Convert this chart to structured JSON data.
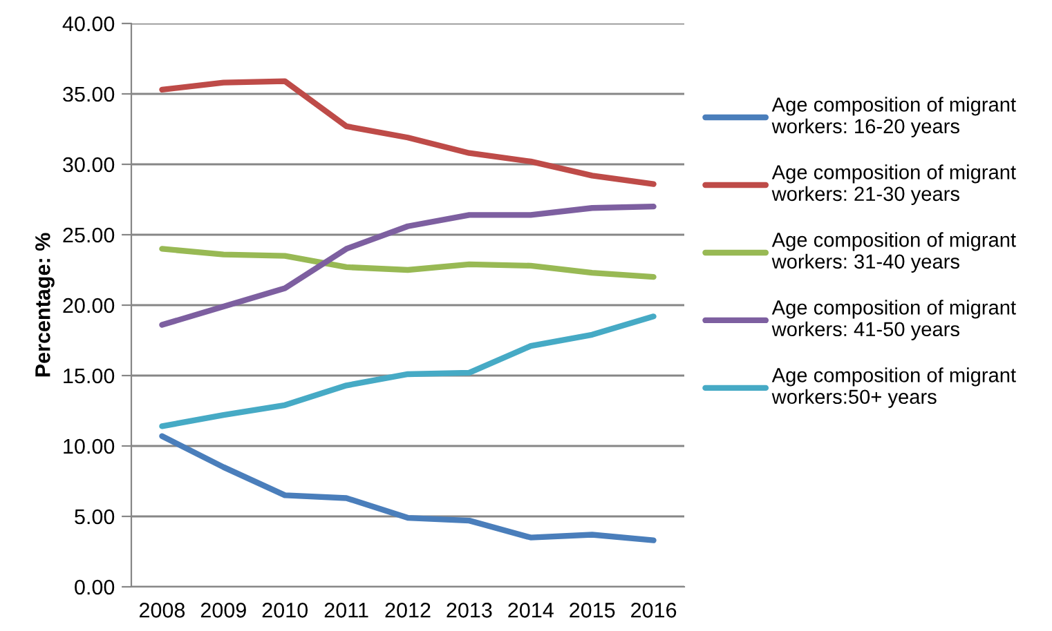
{
  "chart_data": {
    "type": "line",
    "ylabel": "Percentage: %",
    "categories": [
      "2008",
      "2009",
      "2010",
      "2011",
      "2012",
      "2013",
      "2014",
      "2015",
      "2016"
    ],
    "series": [
      {
        "name": "Age composition of migrant\nworkers: 16-20 years",
        "color": "#4a7ebb",
        "values": [
          10.7,
          8.5,
          6.5,
          6.3,
          4.9,
          4.7,
          3.5,
          3.7,
          3.3
        ]
      },
      {
        "name": "Age composition of migrant\nworkers: 21-30 years",
        "color": "#be4b48",
        "values": [
          35.3,
          35.8,
          35.9,
          32.7,
          31.9,
          30.8,
          30.2,
          29.2,
          28.6
        ]
      },
      {
        "name": "Age composition of migrant\nworkers: 31-40 years",
        "color": "#98b954",
        "values": [
          24.0,
          23.6,
          23.5,
          22.7,
          22.5,
          22.9,
          22.8,
          22.3,
          22.0
        ]
      },
      {
        "name": "Age composition of migrant\nworkers: 41-50 years",
        "color": "#7d5fa0",
        "values": [
          18.6,
          19.9,
          21.2,
          24.0,
          25.6,
          26.4,
          26.4,
          26.9,
          27.0
        ]
      },
      {
        "name": "Age composition of migrant\nworkers:50+ years",
        "color": "#46aac5",
        "values": [
          11.4,
          12.2,
          12.9,
          14.3,
          15.1,
          15.2,
          17.1,
          17.9,
          19.2
        ]
      }
    ],
    "ylim": [
      0,
      40
    ],
    "yticks": [
      {
        "value": 0,
        "label": "0.00"
      },
      {
        "value": 5,
        "label": "5.00"
      },
      {
        "value": 10,
        "label": "10.00"
      },
      {
        "value": 15,
        "label": "15.00"
      },
      {
        "value": 20,
        "label": "20.00"
      },
      {
        "value": 25,
        "label": "25.00"
      },
      {
        "value": 30,
        "label": "30.00"
      },
      {
        "value": 35,
        "label": "35.00"
      },
      {
        "value": 40,
        "label": "40.00"
      }
    ],
    "grid": "y",
    "legend": "right",
    "marker": "none",
    "line_style": "solid"
  }
}
